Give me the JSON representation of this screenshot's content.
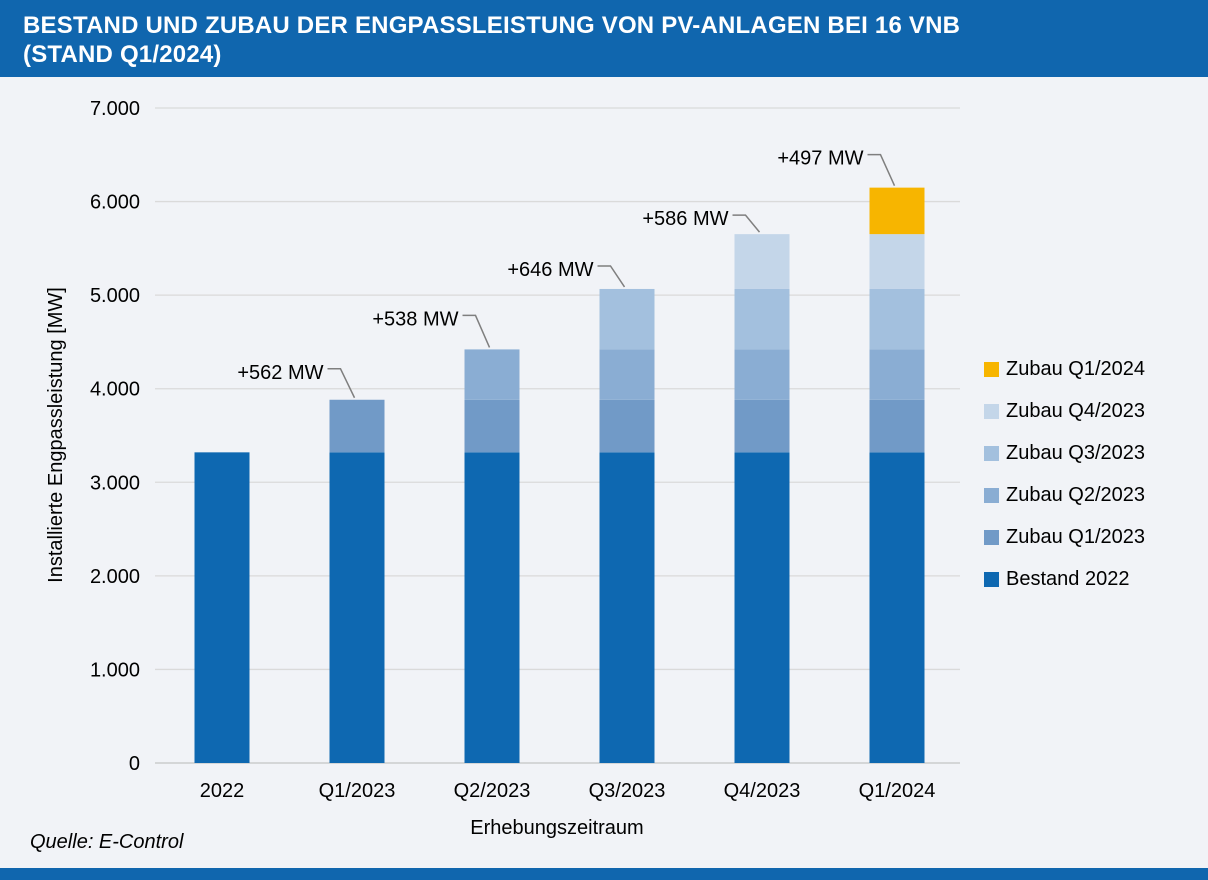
{
  "header": {
    "title": "BESTAND UND ZUBAU DER ENGPASSLEISTUNG VON PV-ANLAGEN BEI 16 VNB\n(STAND Q1/2024)"
  },
  "source_note": "Quelle: E-Control",
  "colors": {
    "band_blue": "#1066AE",
    "page_bg": "#F1F3F7",
    "gridline": "#DADADA",
    "axis_line": "#C4C4C4",
    "leader_line": "#7F7F7F",
    "text": "#000000"
  },
  "chart_data": {
    "type": "bar",
    "stacked": true,
    "title": "BESTAND UND ZUBAU DER ENGPASSLEISTUNG VON PV-ANLAGEN BEI 16 VNB (STAND Q1/2024)",
    "categories": [
      "2022",
      "Q1/2023",
      "Q2/2023",
      "Q3/2023",
      "Q4/2023",
      "Q1/2024"
    ],
    "series": [
      {
        "name": "Bestand 2022",
        "color": "#0E68B1",
        "values": [
          3320,
          3320,
          3320,
          3320,
          3320,
          3320
        ]
      },
      {
        "name": "Zubau Q1/2023",
        "color": "#719AC7",
        "values": [
          0,
          562,
          562,
          562,
          562,
          562
        ]
      },
      {
        "name": "Zubau Q2/2023",
        "color": "#8AADD3",
        "values": [
          0,
          0,
          538,
          538,
          538,
          538
        ]
      },
      {
        "name": "Zubau Q3/2023",
        "color": "#A3C0DE",
        "values": [
          0,
          0,
          0,
          646,
          646,
          646
        ]
      },
      {
        "name": "Zubau Q4/2023",
        "color": "#C4D6E9",
        "values": [
          0,
          0,
          0,
          0,
          586,
          586
        ]
      },
      {
        "name": "Zubau Q1/2024",
        "color": "#F7B500",
        "values": [
          0,
          0,
          0,
          0,
          0,
          497
        ]
      }
    ],
    "bar_totals": [
      3320,
      3882,
      4420,
      5066,
      5652,
      6149
    ],
    "annotations": [
      {
        "category": "Q1/2023",
        "text": "+562 MW"
      },
      {
        "category": "Q2/2023",
        "text": "+538 MW"
      },
      {
        "category": "Q3/2023",
        "text": "+646 MW"
      },
      {
        "category": "Q4/2023",
        "text": "+586 MW"
      },
      {
        "category": "Q1/2024",
        "text": "+497 MW"
      }
    ],
    "xlabel": "Erhebungszeitraum",
    "ylabel": "Installierte Engpassleistung [MW]",
    "ylim": [
      0,
      7000
    ],
    "ytick_interval": 1000,
    "ytick_labels": [
      "0",
      "1.000",
      "2.000",
      "3.000",
      "4.000",
      "5.000",
      "6.000",
      "7.000"
    ],
    "grid": true,
    "legend_position": "right",
    "legend_order": [
      "Zubau Q1/2024",
      "Zubau Q4/2023",
      "Zubau Q3/2023",
      "Zubau Q2/2023",
      "Zubau Q1/2023",
      "Bestand 2022"
    ]
  }
}
